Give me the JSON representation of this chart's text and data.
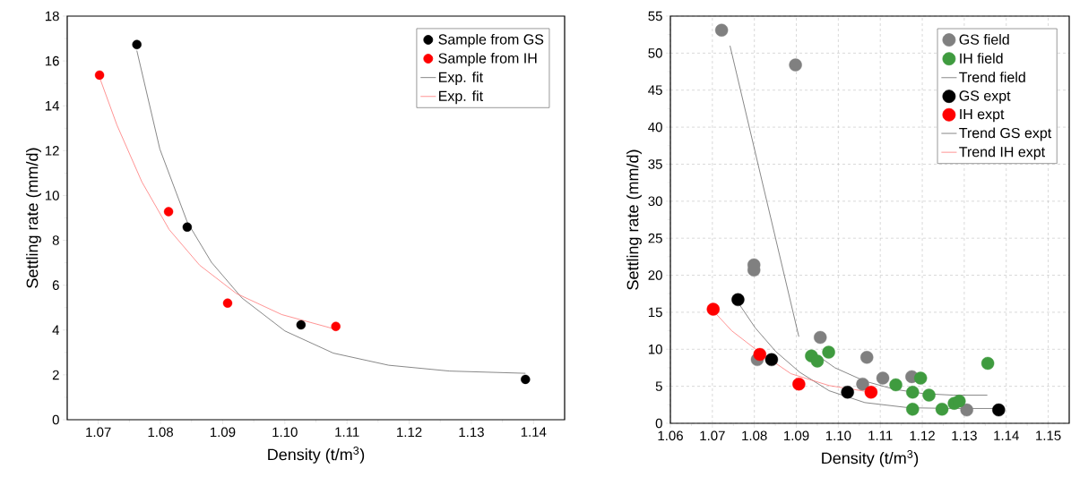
{
  "chart_data": [
    {
      "type": "scatter",
      "xlabel": "Density (t/m$^{3}$)",
      "ylabel": "Settling rate (mm/d)",
      "xlim": [
        1.065,
        1.145
      ],
      "ylim": [
        0,
        18
      ],
      "xticks": [
        1.07,
        1.08,
        1.09,
        {
          "value": 1.1,
          "label": "1.10"
        },
        1.11,
        1.12,
        1.13,
        1.14
      ],
      "yticks": [
        0,
        2,
        4,
        6,
        8,
        10,
        12,
        14,
        16,
        18
      ],
      "grid": false,
      "legend": "top right",
      "series": [
        {
          "name": "Sample from GS",
          "type": "scatter",
          "color": "#000000",
          "x": [
            1.0762,
            1.0843,
            1.1026,
            1.1387
          ],
          "values": [
            16.73,
            8.59,
            4.23,
            1.8
          ]
        },
        {
          "name": "Sample from IH",
          "type": "scatter",
          "color": "#ff0000",
          "x": [
            1.0702,
            1.0813,
            1.0908,
            1.1082
          ],
          "values": [
            15.37,
            9.28,
            5.2,
            4.16
          ]
        },
        {
          "name": "Exp. fit",
          "type": "line",
          "line_style": "solid",
          "color": "#555555",
          "x": [
            1.0762,
            1.0799,
            1.0843,
            1.0882,
            1.0931,
            1.1,
            1.1078,
            1.1167,
            1.1265,
            1.1387
          ],
          "values": [
            16.46,
            12.07,
            8.82,
            7.02,
            5.43,
            3.96,
            2.97,
            2.43,
            2.17,
            2.07
          ]
        },
        {
          "name": "Exp. fit",
          "type": "line",
          "line_style": "solid",
          "color": "#ff6666",
          "x": [
            1.0702,
            1.073,
            1.077,
            1.0814,
            1.0863,
            1.0922,
            1.0995,
            1.1082
          ],
          "values": [
            15.27,
            13.14,
            10.61,
            8.48,
            6.89,
            5.63,
            4.69,
            4.03
          ]
        }
      ]
    },
    {
      "type": "scatter",
      "xlabel": "Density (t/m$^{3}$)",
      "ylabel": "Settling rate (mm/d)",
      "xlim": [
        1.06,
        1.155
      ],
      "ylim": [
        0,
        55
      ],
      "xticks": [
        1.06,
        1.07,
        1.08,
        1.09,
        {
          "value": 1.1,
          "label": "1.10"
        },
        1.11,
        1.12,
        1.13,
        1.14,
        1.15
      ],
      "yticks": [
        0,
        5,
        10,
        15,
        20,
        25,
        30,
        35,
        40,
        45,
        50,
        55
      ],
      "grid": true,
      "legend": "top right",
      "series": [
        {
          "name": "GS field",
          "type": "scatter",
          "color": "#808080",
          "x": [
            1.0722,
            1.0898,
            1.0799,
            1.0799,
            1.0807,
            1.0957,
            1.1068,
            1.1058,
            1.1106,
            1.1175,
            1.1306
          ],
          "values": [
            53.1,
            48.4,
            21.4,
            20.7,
            8.6,
            11.6,
            8.9,
            5.3,
            6.1,
            6.3,
            1.8
          ]
        },
        {
          "name": "IH field",
          "type": "scatter",
          "color": "#3f9b3f",
          "x": [
            1.0936,
            1.095,
            1.0977,
            1.1137,
            1.1177,
            1.1177,
            1.1196,
            1.1216,
            1.1247,
            1.1276,
            1.1288,
            1.1356
          ],
          "values": [
            9.1,
            8.4,
            9.6,
            5.2,
            4.2,
            1.9,
            6.1,
            3.8,
            1.9,
            2.7,
            3.0,
            8.1
          ]
        },
        {
          "name": "Trend field",
          "type": "line",
          "line_style": "solid",
          "color": "#555555",
          "x": [
            1.0742,
            1.0906,
            null,
            1.0937,
            1.0992,
            1.1063,
            1.1133,
            1.1204,
            1.1274,
            1.1355
          ],
          "values": [
            51.0,
            11.7,
            null,
            9.7,
            7.5,
            5.7,
            4.6,
            4.0,
            3.8,
            3.8
          ]
        },
        {
          "name": "GS expt",
          "type": "scatter",
          "color": "#000000",
          "x": [
            1.0761,
            1.0841,
            1.1022,
            1.1382
          ],
          "values": [
            16.7,
            8.6,
            4.2,
            1.8
          ]
        },
        {
          "name": "IH expt",
          "type": "scatter",
          "color": "#ff0000",
          "x": [
            1.0702,
            1.0813,
            1.0906,
            1.1078
          ],
          "values": [
            15.4,
            9.3,
            5.3,
            4.2
          ]
        },
        {
          "name": "Trend GS expt",
          "type": "line",
          "line_style": "solid",
          "color": "#555555",
          "x": [
            1.0765,
            1.0802,
            1.0851,
            1.0908,
            1.0978,
            1.1063,
            1.1168,
            1.1274,
            1.1382
          ],
          "values": [
            16.0,
            12.9,
            9.7,
            6.9,
            4.4,
            2.8,
            2.1,
            2.0,
            2.0
          ]
        },
        {
          "name": "Trend IH expt",
          "type": "line",
          "line_style": "solid",
          "color": "#ff6666",
          "x": [
            1.0702,
            1.0746,
            1.081,
            1.0887,
            1.0978,
            1.1078
          ],
          "values": [
            15.2,
            12.5,
            9.7,
            6.7,
            5.1,
            4.2
          ]
        }
      ]
    }
  ]
}
